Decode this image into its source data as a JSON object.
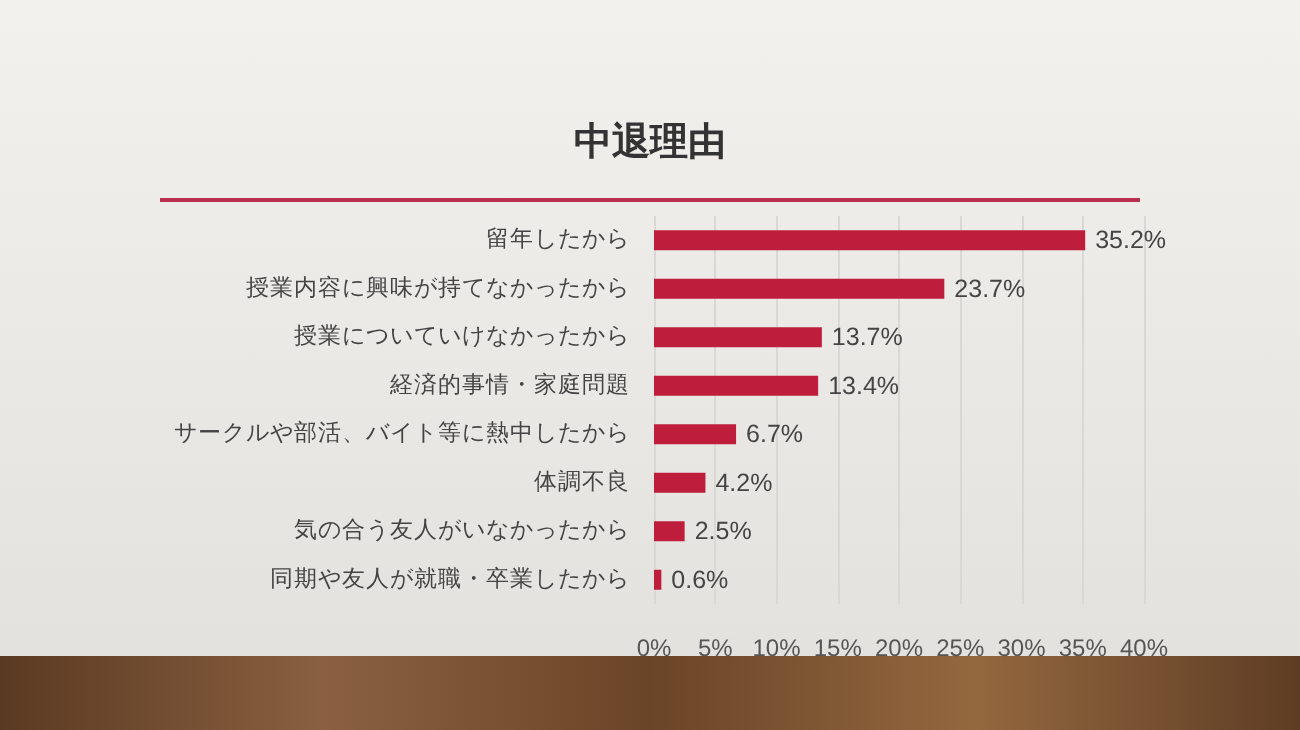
{
  "chart_data": {
    "type": "bar",
    "orientation": "horizontal",
    "title": "中退理由",
    "categories": [
      "留年したから",
      "授業内容に興味が持てなかったから",
      "授業についていけなかったから",
      "経済的事情・家庭問題",
      "サークルや部活、バイト等に熱中したから",
      "体調不良",
      "気の合う友人がいなかったから",
      "同期や友人が就職・卒業したから"
    ],
    "values": [
      35.2,
      23.7,
      13.7,
      13.4,
      6.7,
      4.2,
      2.5,
      0.6
    ],
    "value_labels": [
      "35.2%",
      "23.7%",
      "13.7%",
      "13.4%",
      "6.7%",
      "4.2%",
      "2.5%",
      "0.6%"
    ],
    "color": "#be1e3c",
    "xlim": [
      0,
      40
    ],
    "xticks": [
      {
        "value": 0,
        "label": "0%"
      },
      {
        "value": 5,
        "label": "5%"
      },
      {
        "value": 10,
        "label": "10%"
      },
      {
        "value": 15,
        "label": "15%"
      },
      {
        "value": 20,
        "label": "20%"
      },
      {
        "value": 25,
        "label": "25%"
      },
      {
        "value": 30,
        "label": "30%"
      },
      {
        "value": 35,
        "label": "35%"
      },
      {
        "value": 40,
        "label": "40%"
      }
    ],
    "grid": "x"
  }
}
